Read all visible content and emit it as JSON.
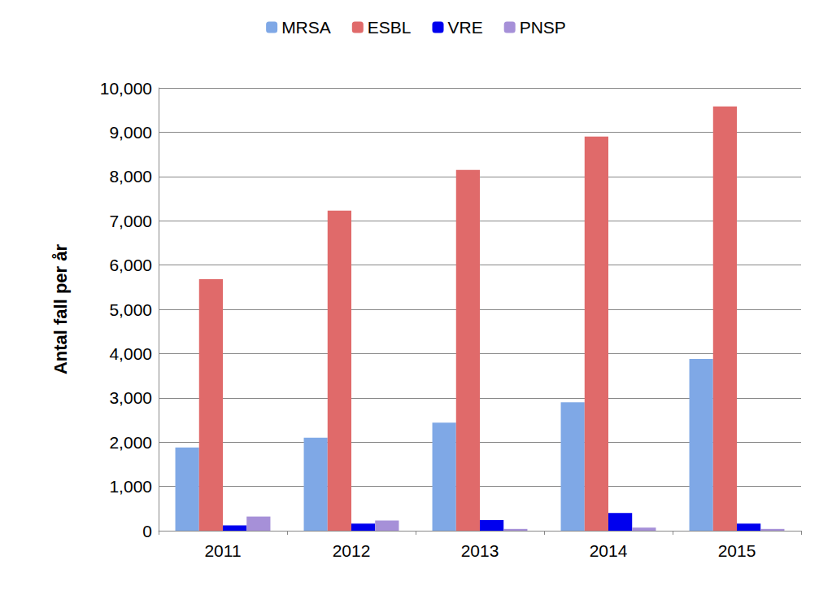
{
  "chart_data": {
    "type": "bar",
    "y_label": "Antal fall per år",
    "categories": [
      "2011",
      "2012",
      "2013",
      "2014",
      "2015"
    ],
    "series": [
      {
        "name": "MRSA",
        "color": "#7fa8e6",
        "values": [
          1880,
          2100,
          2440,
          2900,
          3880
        ]
      },
      {
        "name": "ESBL",
        "color": "#e06a6a",
        "values": [
          5680,
          7230,
          8150,
          8900,
          9580
        ]
      },
      {
        "name": "VRE",
        "color": "#0000ee",
        "values": [
          120,
          160,
          240,
          400,
          160
        ]
      },
      {
        "name": "PNSP",
        "color": "#a690d8",
        "values": [
          320,
          230,
          40,
          70,
          40
        ]
      }
    ],
    "ylim": [
      0,
      10000
    ],
    "yticks": [
      0,
      1000,
      2000,
      3000,
      4000,
      5000,
      6000,
      7000,
      8000,
      9000,
      10000
    ],
    "grid": true,
    "legend": "top"
  }
}
